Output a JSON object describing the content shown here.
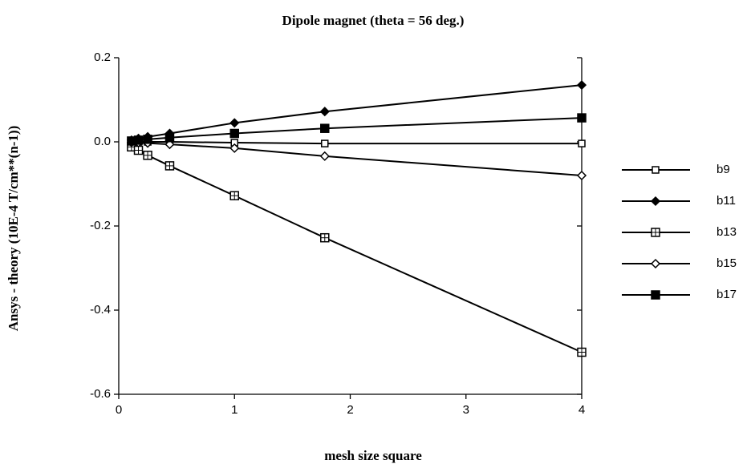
{
  "chart_data": {
    "type": "line",
    "title": "Dipole magnet (theta = 56 deg.)",
    "xlabel": "mesh size square",
    "ylabel": "Ansys - theory (10E-4 T/cm**(n-1))",
    "x": [
      0.11,
      0.17,
      0.25,
      0.44,
      1,
      1.78,
      4
    ],
    "series": [
      {
        "name": "b9",
        "color": "#000000",
        "marker": "square-open",
        "values": [
          0,
          0,
          0,
          0,
          -0.002,
          -0.004,
          -0.004
        ]
      },
      {
        "name": "b11",
        "color": "#000000",
        "marker": "diamond-filled",
        "values": [
          0.004,
          0.008,
          0.012,
          0.02,
          0.045,
          0.072,
          0.135
        ]
      },
      {
        "name": "b13",
        "color": "#000000",
        "marker": "square-cross",
        "values": [
          -0.012,
          -0.02,
          -0.032,
          -0.057,
          -0.128,
          -0.228,
          -0.5
        ]
      },
      {
        "name": "b15",
        "color": "#000000",
        "marker": "diamond-open",
        "values": [
          -0.001,
          -0.002,
          -0.003,
          -0.006,
          -0.015,
          -0.034,
          -0.08
        ]
      },
      {
        "name": "b17",
        "color": "#000000",
        "marker": "square-filled",
        "values": [
          0.002,
          0.004,
          0.006,
          0.01,
          0.02,
          0.032,
          0.057
        ]
      }
    ],
    "xlim": [
      0,
      4
    ],
    "xticks": [
      0,
      1,
      2,
      3,
      4
    ],
    "ylim": [
      -0.6,
      0.2
    ],
    "yticks": [
      {
        "value": 0.2,
        "label": "0.2"
      },
      {
        "value": 0,
        "label": "0.0"
      },
      {
        "value": -0.2,
        "label": "-0.2"
      },
      {
        "value": -0.4,
        "label": "-0.4"
      },
      {
        "value": -0.6,
        "label": "-0.6"
      }
    ],
    "legend": "right"
  }
}
